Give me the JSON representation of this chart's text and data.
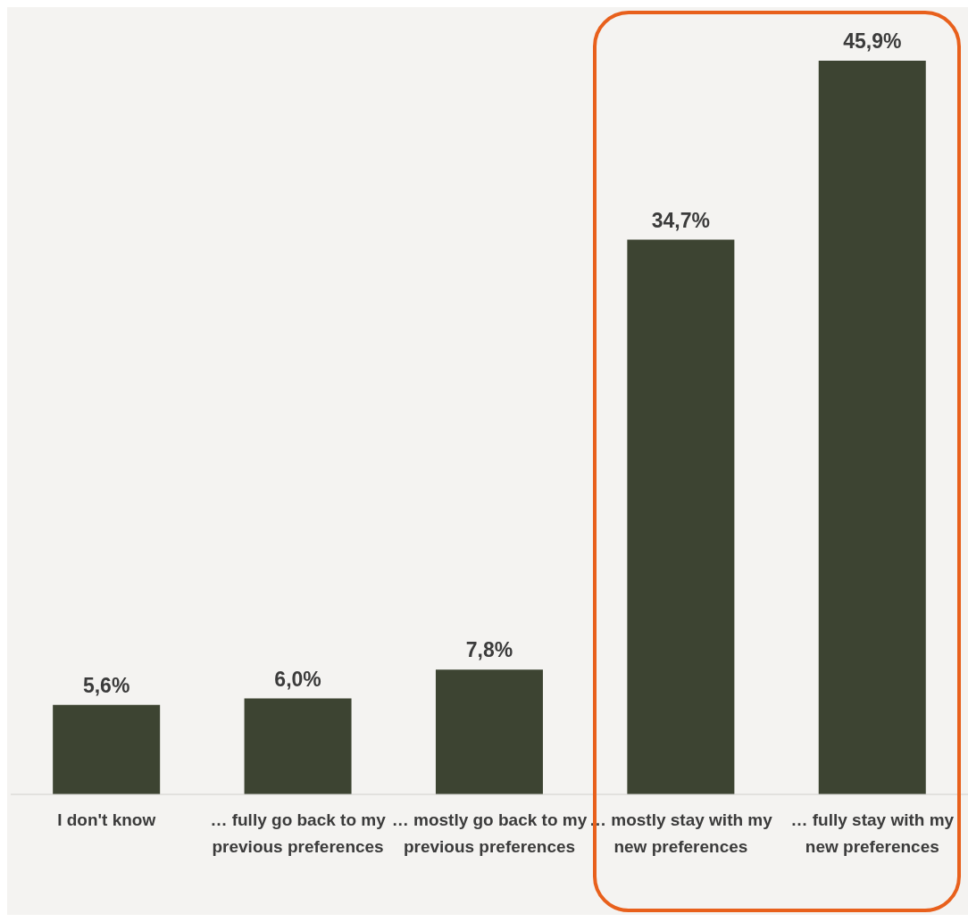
{
  "chart_data": {
    "type": "bar",
    "categories": [
      "I don't know",
      "… fully go back to my previous preferences",
      "… mostly go back to my previous preferences",
      "… mostly stay with my new preferences",
      "… fully stay with my new preferences"
    ],
    "values": [
      5.6,
      6.0,
      7.8,
      34.7,
      45.9
    ],
    "value_labels": [
      "5,6%",
      "6,0%",
      "7,8%",
      "34,7%",
      "45,9%"
    ],
    "color": "#3d4432"
  }
}
